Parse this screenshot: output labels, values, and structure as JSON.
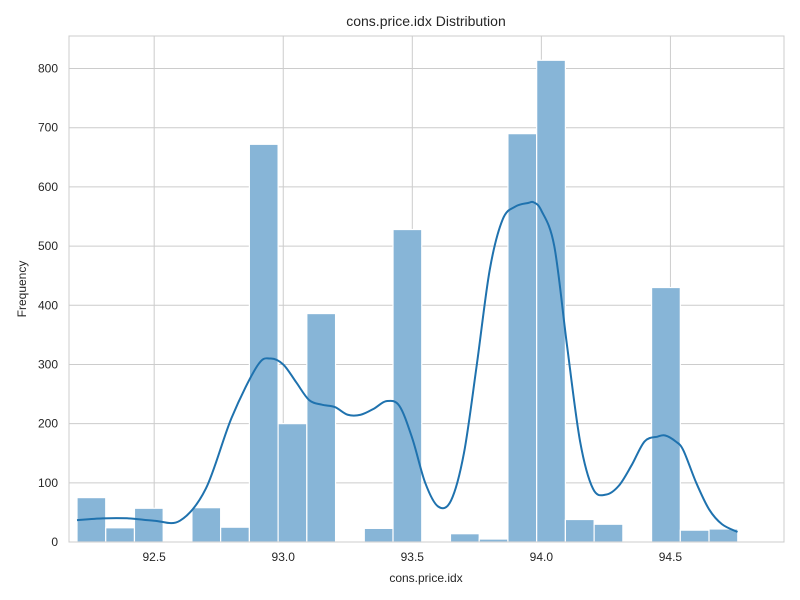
{
  "chart_data": {
    "type": "histogram",
    "title": "cons.price.idx Distribution",
    "xlabel": "cons.price.idx",
    "ylabel": "Frequency",
    "xlim": [
      92.17,
      94.94
    ],
    "ylim": [
      0,
      855
    ],
    "xticks": [
      92.5,
      93.0,
      93.5,
      94.0,
      94.5
    ],
    "xtick_labels": [
      "92.5",
      "93.0",
      "93.5",
      "94.0",
      "94.5"
    ],
    "yticks": [
      0,
      100,
      200,
      300,
      400,
      500,
      600,
      700,
      800
    ],
    "ytick_labels": [
      "0",
      "100",
      "200",
      "300",
      "400",
      "500",
      "600",
      "700",
      "800"
    ],
    "grid": true,
    "bin_start": 92.201,
    "bin_width": 0.1113,
    "values": [
      75,
      24,
      57,
      0,
      58,
      25,
      672,
      200,
      386,
      0,
      23,
      528,
      0,
      14,
      5,
      690,
      814,
      38,
      30,
      0,
      430,
      20,
      22
    ],
    "kde": {
      "x": [
        92.201,
        92.3,
        92.4,
        92.5,
        92.6,
        92.7,
        92.8,
        92.9,
        92.95,
        93.0,
        93.05,
        93.1,
        93.15,
        93.2,
        93.25,
        93.3,
        93.35,
        93.4,
        93.45,
        93.5,
        93.55,
        93.6,
        93.65,
        93.7,
        93.75,
        93.8,
        93.85,
        93.9,
        93.95,
        93.97,
        94.0,
        94.05,
        94.1,
        94.15,
        94.2,
        94.25,
        94.3,
        94.35,
        94.4,
        94.45,
        94.48,
        94.52,
        94.55,
        94.6,
        94.65,
        94.7,
        94.76
      ],
      "y": [
        37,
        40,
        40,
        36,
        36,
        90,
        210,
        298,
        310,
        300,
        270,
        240,
        232,
        228,
        215,
        215,
        225,
        238,
        230,
        175,
        100,
        60,
        70,
        150,
        300,
        460,
        545,
        567,
        573,
        574,
        560,
        500,
        330,
        170,
        90,
        80,
        95,
        130,
        170,
        178,
        180,
        170,
        155,
        100,
        55,
        30,
        17
      ]
    },
    "bar_color": "#87b5d7",
    "bar_edge_color": "#ffffff",
    "line_color": "#1f72ae"
  }
}
